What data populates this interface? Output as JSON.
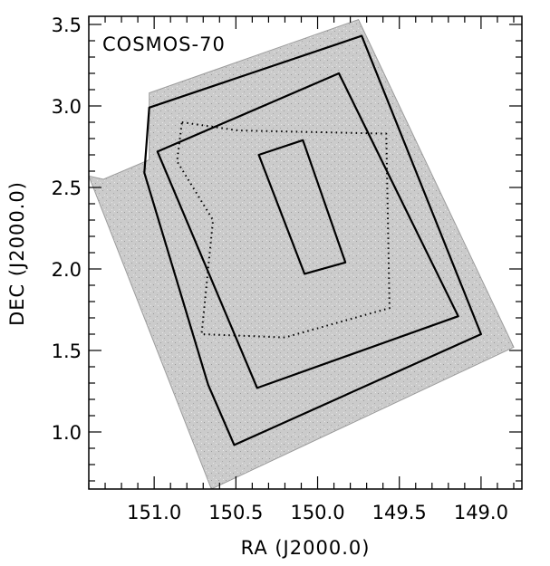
{
  "chart_data": {
    "type": "sky-footprint",
    "panel_label": "COSMOS-70",
    "xlabel": "RA (J2000.0)",
    "ylabel": "DEC (J2000.0)",
    "xlim": [
      151.4,
      148.75
    ],
    "ylim": [
      0.65,
      3.55
    ],
    "x_axis_reversed": true,
    "x_ticks": [
      {
        "value": 151.0,
        "label": "151.0"
      },
      {
        "value": 150.5,
        "label": "150.5"
      },
      {
        "value": 150.0,
        "label": "150.0"
      },
      {
        "value": 149.5,
        "label": "149.5"
      },
      {
        "value": 149.0,
        "label": "149.0"
      }
    ],
    "y_ticks": [
      {
        "value": 1.0,
        "label": "1.0"
      },
      {
        "value": 1.5,
        "label": "1.5"
      },
      {
        "value": 2.0,
        "label": "2.0"
      },
      {
        "value": 2.5,
        "label": "2.5"
      },
      {
        "value": 3.0,
        "label": "3.0"
      }
    ],
    "background_field": {
      "fill": "#cfcfcf",
      "vertices": [
        [
          151.31,
          2.55
        ],
        [
          151.03,
          2.67
        ],
        [
          151.03,
          3.08
        ],
        [
          149.75,
          3.53
        ],
        [
          148.8,
          1.52
        ],
        [
          150.65,
          0.65
        ],
        [
          151.4,
          2.57
        ]
      ]
    },
    "outlines": [
      {
        "style": "solid",
        "vertices": [
          [
            151.03,
            2.99
          ],
          [
            149.73,
            3.43
          ],
          [
            149.0,
            1.6
          ],
          [
            150.51,
            0.92
          ],
          [
            150.67,
            1.29
          ],
          [
            151.06,
            2.59
          ]
        ]
      },
      {
        "style": "solid",
        "vertices": [
          [
            150.98,
            2.72
          ],
          [
            149.87,
            3.2
          ],
          [
            149.14,
            1.71
          ],
          [
            150.37,
            1.27
          ]
        ]
      },
      {
        "style": "dotted",
        "vertices": [
          [
            150.83,
            2.9
          ],
          [
            150.49,
            2.85
          ],
          [
            149.58,
            2.83
          ],
          [
            149.56,
            1.76
          ],
          [
            150.2,
            1.58
          ],
          [
            150.71,
            1.6
          ],
          [
            150.64,
            2.3
          ],
          [
            150.86,
            2.66
          ]
        ]
      },
      {
        "style": "solid",
        "vertices": [
          [
            150.36,
            2.7
          ],
          [
            150.09,
            2.79
          ],
          [
            149.83,
            2.04
          ],
          [
            150.08,
            1.97
          ]
        ]
      }
    ],
    "color": "#000000",
    "grid": false
  }
}
